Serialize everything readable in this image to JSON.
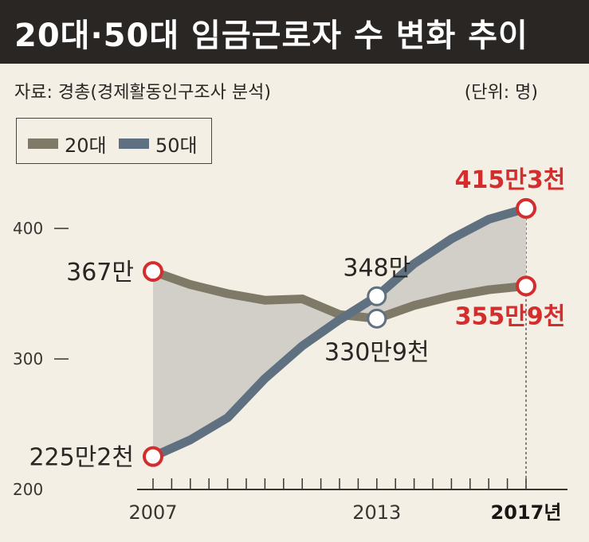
{
  "title": "20대·50대 임금근로자 수 변화 추이",
  "source": "자료: 경총(경제활동인구조사 분석)",
  "unit": "(단위: 명)",
  "colors": {
    "title_bg": "#2a2624",
    "series_20s": "#7f7a68",
    "series_50s": "#5f7180",
    "fill": "#d2cfc8",
    "highlight": "#d42d2e",
    "text": "#2a2624"
  },
  "legend": [
    {
      "label": "20대",
      "color": "#7f7a68"
    },
    {
      "label": "50대",
      "color": "#5f7180"
    }
  ],
  "chart_data": {
    "type": "line",
    "x": [
      2007,
      2008,
      2009,
      2010,
      2011,
      2012,
      2013,
      2014,
      2015,
      2016,
      2017
    ],
    "x_tick_labels": [
      {
        "x": 2007,
        "label": "2007"
      },
      {
        "x": 2013,
        "label": "2013"
      },
      {
        "x": 2017,
        "label": "2017년"
      }
    ],
    "y_ticks": [
      200,
      300,
      400
    ],
    "ylim": [
      200,
      450
    ],
    "grid": false,
    "legend_position": "top-left",
    "series": [
      {
        "name": "20대",
        "values": [
          367,
          357,
          350,
          345,
          346,
          334,
          330.9,
          341,
          348,
          353,
          355.9
        ]
      },
      {
        "name": "50대",
        "values": [
          225.2,
          238,
          255,
          285,
          310,
          330,
          348,
          373,
          392,
          407,
          415.3
        ]
      }
    ],
    "annotations": [
      {
        "series": "20대",
        "x": 2007,
        "value": 367,
        "label": "367만",
        "color": "dark",
        "pos": "left"
      },
      {
        "series": "50대",
        "x": 2007,
        "value": 225.2,
        "label": "225만2천",
        "color": "dark",
        "pos": "left"
      },
      {
        "series": "50대",
        "x": 2013,
        "value": 348,
        "label": "348만",
        "color": "dark",
        "pos": "above"
      },
      {
        "series": "20대",
        "x": 2013,
        "value": 330.9,
        "label": "330만9천",
        "color": "dark",
        "pos": "below"
      },
      {
        "series": "50대",
        "x": 2017,
        "value": 415.3,
        "label": "415만3천",
        "color": "red",
        "pos": "above"
      },
      {
        "series": "20대",
        "x": 2017,
        "value": 355.9,
        "label": "355만9천",
        "color": "red",
        "pos": "below"
      }
    ]
  }
}
